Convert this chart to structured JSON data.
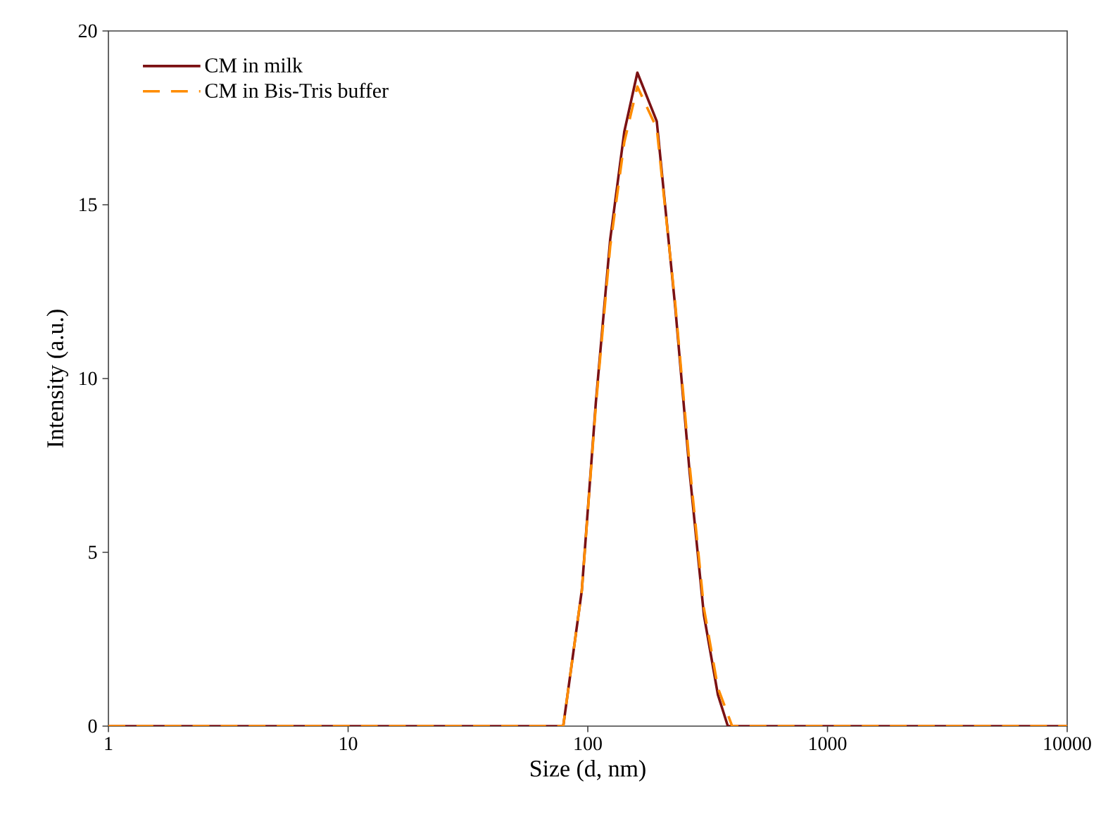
{
  "chart_data": {
    "type": "line",
    "xlabel": "Size (d, nm)",
    "ylabel": "Intensity (a.u.)",
    "log": "x",
    "xlim": [
      1,
      10000
    ],
    "xticks": [
      1,
      10,
      100,
      1000,
      10000
    ],
    "ylim": [
      0,
      20
    ],
    "yticks": [
      0,
      5,
      10,
      15,
      20
    ],
    "grid": false,
    "legend": "top left",
    "marker": "none",
    "series": [
      {
        "name": "CM in milk",
        "color": "#7b1113",
        "line_style": "solid",
        "x": [
          1,
          79,
          94.4,
          108,
          124,
          142,
          161,
          194,
          232,
          266,
          305,
          349,
          384,
          10000
        ],
        "values": [
          0,
          0,
          3.9,
          9.3,
          14.0,
          17.1,
          18.8,
          17.4,
          12.0,
          7.3,
          3.2,
          0.9,
          0,
          0
        ]
      },
      {
        "name": "CM in Bis-Tris buffer",
        "color": "#ff8c00",
        "line_style": "dashed",
        "x": [
          1,
          79,
          94.4,
          108,
          124,
          142,
          161,
          194,
          232,
          266,
          305,
          349,
          400,
          10000
        ],
        "values": [
          0,
          0,
          3.9,
          9.2,
          13.8,
          16.8,
          18.4,
          17.2,
          12.1,
          7.5,
          3.4,
          1.1,
          0,
          0
        ]
      }
    ]
  }
}
